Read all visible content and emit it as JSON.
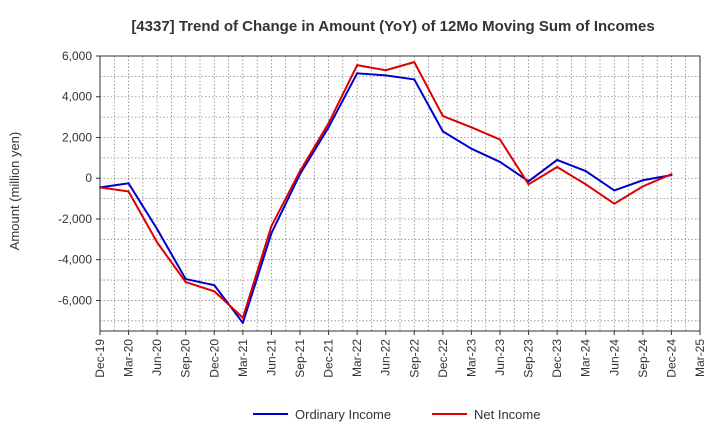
{
  "chart_data": {
    "type": "line",
    "title": "[4337]  Trend of Change in Amount (YoY) of 12Mo Moving Sum of Incomes",
    "xlabel": "",
    "ylabel": "Amount (million yen)",
    "categories": [
      "Dec-19",
      "Mar-20",
      "Jun-20",
      "Sep-20",
      "Dec-20",
      "Mar-21",
      "Jun-21",
      "Sep-21",
      "Dec-21",
      "Mar-22",
      "Jun-22",
      "Sep-22",
      "Dec-22",
      "Mar-23",
      "Jun-23",
      "Sep-23",
      "Dec-23",
      "Mar-24",
      "Jun-24",
      "Sep-24",
      "Dec-24",
      "Mar-25"
    ],
    "ylim": [
      -7500,
      6000
    ],
    "yticks": [
      6000,
      4000,
      2000,
      0,
      -2000,
      -4000,
      -6000
    ],
    "ytick_labels": [
      "6,000",
      "4,000",
      "2,000",
      "0",
      "-2,000",
      "-4,000",
      "-6,000"
    ],
    "grid": true,
    "legend_position": "bottom",
    "series": [
      {
        "name": "Ordinary Income",
        "color": "#0000cc",
        "values": [
          -450,
          -250,
          -2500,
          -4950,
          -5250,
          -7100,
          -2700,
          200,
          2500,
          5150,
          5050,
          4850,
          2300,
          1450,
          800,
          -150,
          900,
          350,
          -600,
          -100,
          150,
          null
        ]
      },
      {
        "name": "Net Income",
        "color": "#dd0000",
        "values": [
          -450,
          -650,
          -3150,
          -5100,
          -5550,
          -6850,
          -2350,
          350,
          2700,
          5550,
          5300,
          5700,
          3050,
          2500,
          1900,
          -300,
          550,
          -300,
          -1250,
          -400,
          200,
          null
        ]
      }
    ]
  }
}
